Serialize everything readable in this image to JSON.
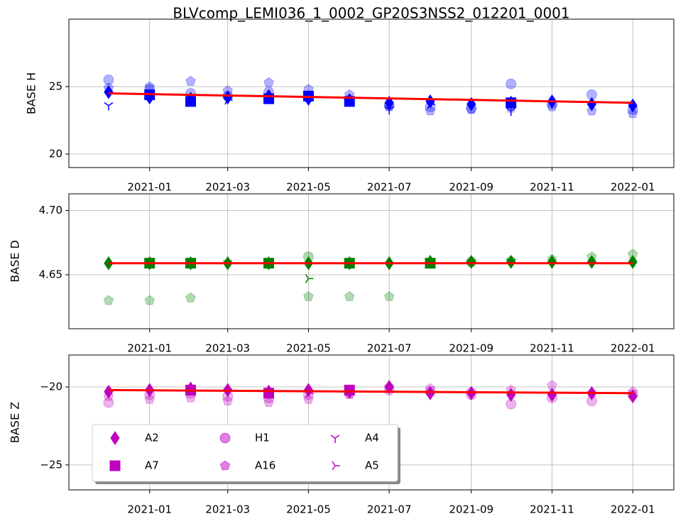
{
  "chart_data": [
    {
      "type": "scatter",
      "title": "BLVcomp_LEMI036_1_0002_GP20S3NSS2_012201_0001",
      "ylabel": "BASE H",
      "xlim": [
        "2020-11",
        "2022-02"
      ],
      "xticks": [
        "2021-01",
        "2021-03",
        "2021-05",
        "2021-07",
        "2021-09",
        "2021-11",
        "2022-01"
      ],
      "ylim": [
        19,
        30
      ],
      "yticks": [
        20,
        25
      ],
      "grid": true,
      "series": [
        {
          "name": "A2",
          "color": "#0000ff",
          "marker": "diamond",
          "alpha": 1,
          "x": [
            "2020-12",
            "2021-01",
            "2021-02",
            "2021-03",
            "2021-04",
            "2021-05",
            "2021-06",
            "2021-07",
            "2021-08",
            "2021-09",
            "2021-10",
            "2021-11",
            "2021-12",
            "2022-01"
          ],
          "values": [
            24.6,
            24.2,
            24.1,
            24.2,
            24.3,
            24.1,
            24.0,
            23.8,
            23.9,
            23.7,
            23.8,
            23.9,
            23.7,
            23.6
          ]
        },
        {
          "name": "A7",
          "color": "#0000ff",
          "marker": "square",
          "alpha": 1,
          "x": [
            "2021-01",
            "2021-02",
            "2021-04",
            "2021-05",
            "2021-06",
            "2021-10"
          ],
          "values": [
            24.4,
            23.9,
            24.1,
            24.3,
            23.9,
            23.8
          ]
        },
        {
          "name": "H1",
          "color": "#0000ff",
          "marker": "circle",
          "alpha": 0.3,
          "x": [
            "2020-12",
            "2021-01",
            "2021-02",
            "2021-03",
            "2021-04",
            "2021-05",
            "2021-06",
            "2021-07",
            "2021-08",
            "2021-09",
            "2021-10",
            "2021-11",
            "2021-12",
            "2022-01"
          ],
          "values": [
            25.5,
            24.8,
            24.5,
            24.3,
            24.6,
            24.2,
            24.0,
            23.6,
            23.5,
            23.4,
            25.2,
            23.7,
            24.4,
            23.3
          ]
        },
        {
          "name": "A16",
          "color": "#0000ff",
          "marker": "pentagon",
          "alpha": 0.3,
          "x": [
            "2020-12",
            "2021-01",
            "2021-02",
            "2021-03",
            "2021-04",
            "2021-05",
            "2021-06",
            "2021-07",
            "2021-08",
            "2021-09",
            "2021-10",
            "2021-11",
            "2021-12",
            "2022-01"
          ],
          "values": [
            24.9,
            25.0,
            25.4,
            24.7,
            25.3,
            24.8,
            24.4,
            23.5,
            23.2,
            23.3,
            23.4,
            23.5,
            23.2,
            23.0
          ]
        },
        {
          "name": "A4",
          "color": "#0000ff",
          "marker": "tri_down",
          "alpha": 1,
          "x": [
            "2020-12",
            "2021-07",
            "2021-10"
          ],
          "values": [
            23.6,
            23.3,
            23.2
          ]
        },
        {
          "name": "A5",
          "color": "#0000ff",
          "marker": "tri_right",
          "alpha": 1,
          "x": [
            "2021-03",
            "2021-08"
          ],
          "values": [
            24.0,
            23.7
          ]
        }
      ],
      "fit": {
        "color": "#ff0000",
        "x": [
          "2020-12",
          "2022-01"
        ],
        "values": [
          24.5,
          23.8
        ]
      }
    },
    {
      "type": "scatter",
      "ylabel": "BASE D",
      "xlim": [
        "2020-11",
        "2022-02"
      ],
      "xticks": [
        "2021-01",
        "2021-03",
        "2021-05",
        "2021-07",
        "2021-09",
        "2021-11",
        "2022-01"
      ],
      "ylim": [
        4.608,
        4.713
      ],
      "yticks": [
        {
          "value": 4.65,
          "label": "4.65"
        },
        {
          "value": 4.7,
          "label": "4.70"
        }
      ],
      "grid": true,
      "series": [
        {
          "name": "A2",
          "color": "#008000",
          "marker": "diamond",
          "alpha": 1,
          "x": [
            "2020-12",
            "2021-01",
            "2021-02",
            "2021-03",
            "2021-04",
            "2021-05",
            "2021-06",
            "2021-07",
            "2021-08",
            "2021-09",
            "2021-10",
            "2021-11",
            "2021-12",
            "2022-01"
          ],
          "values": [
            4.659,
            4.659,
            4.659,
            4.659,
            4.659,
            4.659,
            4.659,
            4.659,
            4.66,
            4.66,
            4.66,
            4.66,
            4.66,
            4.66
          ]
        },
        {
          "name": "A7",
          "color": "#008000",
          "marker": "square",
          "alpha": 1,
          "x": [
            "2021-01",
            "2021-02",
            "2021-04",
            "2021-06",
            "2021-08"
          ],
          "values": [
            4.659,
            4.659,
            4.659,
            4.659,
            4.659
          ]
        },
        {
          "name": "H1",
          "color": "#008000",
          "marker": "circle",
          "alpha": 0.3,
          "x": [
            "2021-01",
            "2021-05",
            "2021-09"
          ],
          "values": [
            4.659,
            4.664,
            4.66
          ]
        },
        {
          "name": "A16",
          "color": "#008000",
          "marker": "pentagon",
          "alpha": 0.3,
          "x": [
            "2020-12",
            "2021-01",
            "2021-02",
            "2021-05",
            "2021-06",
            "2021-07",
            "2021-08",
            "2021-09",
            "2021-10",
            "2021-11",
            "2021-12",
            "2022-01"
          ],
          "values": [
            4.63,
            4.63,
            4.632,
            4.633,
            4.633,
            4.633,
            4.659,
            4.66,
            4.661,
            4.662,
            4.664,
            4.666
          ]
        },
        {
          "name": "A4",
          "color": "#008000",
          "marker": "tri_down",
          "alpha": 1,
          "x": [
            "2021-03",
            "2021-10"
          ],
          "values": [
            4.659,
            4.66
          ]
        },
        {
          "name": "A5",
          "color": "#008000",
          "marker": "tri_right",
          "alpha": 1,
          "x": [
            "2021-05"
          ],
          "values": [
            4.647
          ]
        }
      ],
      "fit": {
        "color": "#ff0000",
        "x": [
          "2020-12",
          "2022-01"
        ],
        "values": [
          4.659,
          4.659
        ]
      }
    },
    {
      "type": "scatter",
      "ylabel": "BASE Z",
      "xlim": [
        "2020-11",
        "2022-02"
      ],
      "xticks": [
        "2021-01",
        "2021-03",
        "2021-05",
        "2021-07",
        "2021-09",
        "2021-11",
        "2022-01"
      ],
      "ylim": [
        -26.6,
        -17.95
      ],
      "yticks": [
        {
          "value": -20,
          "label": "−20"
        },
        {
          "value": -25,
          "label": "−25"
        }
      ],
      "grid": true,
      "legend": "lower left",
      "series": [
        {
          "name": "A2",
          "color": "#bf00bf",
          "marker": "diamond",
          "alpha": 1,
          "x": [
            "2020-12",
            "2021-01",
            "2021-02",
            "2021-03",
            "2021-04",
            "2021-05",
            "2021-06",
            "2021-07",
            "2021-08",
            "2021-09",
            "2021-10",
            "2021-11",
            "2021-12",
            "2022-01"
          ],
          "values": [
            -20.3,
            -20.2,
            -20.1,
            -20.2,
            -20.3,
            -20.2,
            -20.3,
            -20.0,
            -20.4,
            -20.4,
            -20.5,
            -20.5,
            -20.4,
            -20.6
          ]
        },
        {
          "name": "A7",
          "color": "#bf00bf",
          "marker": "square",
          "alpha": 1,
          "x": [
            "2021-02",
            "2021-04",
            "2021-06"
          ],
          "values": [
            -20.2,
            -20.4,
            -20.2
          ]
        },
        {
          "name": "H1",
          "color": "#bf00bf",
          "marker": "circle",
          "alpha": 0.3,
          "x": [
            "2020-12",
            "2021-01",
            "2021-02",
            "2021-03",
            "2021-04",
            "2021-05",
            "2021-06",
            "2021-07",
            "2021-08",
            "2021-09",
            "2021-10",
            "2021-11",
            "2021-12",
            "2022-01"
          ],
          "values": [
            -21.0,
            -20.5,
            -20.4,
            -20.6,
            -20.7,
            -20.5,
            -20.4,
            -20.2,
            -20.3,
            -20.5,
            -21.1,
            -20.7,
            -20.9,
            -20.5
          ]
        },
        {
          "name": "A16",
          "color": "#bf00bf",
          "marker": "pentagon",
          "alpha": 0.3,
          "x": [
            "2020-12",
            "2021-01",
            "2021-02",
            "2021-03",
            "2021-04",
            "2021-05",
            "2021-06",
            "2021-07",
            "2021-08",
            "2021-09",
            "2021-10",
            "2021-11",
            "2021-12",
            "2022-01"
          ],
          "values": [
            -20.6,
            -20.8,
            -20.7,
            -20.9,
            -21.0,
            -20.8,
            -20.5,
            -20.0,
            -20.1,
            -20.3,
            -20.2,
            -19.9,
            -20.4,
            -20.3
          ]
        },
        {
          "name": "A4",
          "color": "#bf00bf",
          "marker": "tri_down",
          "alpha": 1,
          "x": [
            "2021-03",
            "2021-10"
          ],
          "values": [
            -20.3,
            -20.5
          ]
        },
        {
          "name": "A5",
          "color": "#bf00bf",
          "marker": "tri_right",
          "alpha": 1,
          "x": [
            "2021-05"
          ],
          "values": [
            -20.4
          ]
        }
      ],
      "fit": {
        "color": "#ff0000",
        "x": [
          "2020-12",
          "2022-01"
        ],
        "values": [
          -20.2,
          -20.4
        ]
      }
    }
  ]
}
